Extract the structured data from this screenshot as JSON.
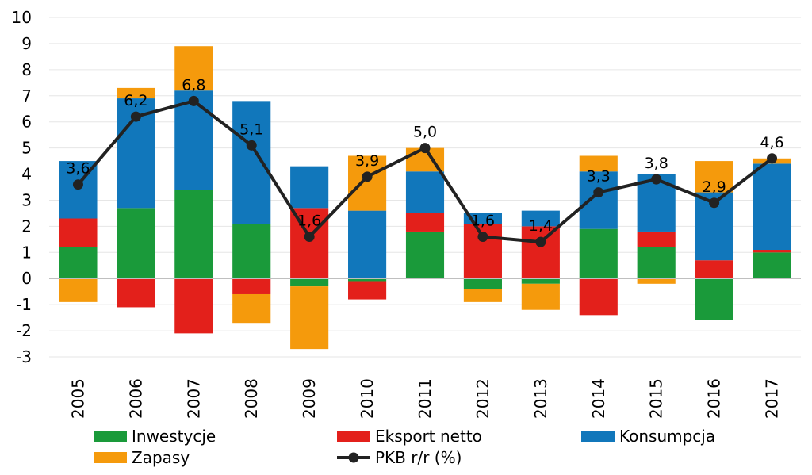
{
  "chart_data": {
    "type": "bar",
    "stacked": true,
    "categories": [
      "2005",
      "2006",
      "2007",
      "2008",
      "2009",
      "2010",
      "2011",
      "2012",
      "2013",
      "2014",
      "2015",
      "2016",
      "2017"
    ],
    "series": [
      {
        "name": "Inwestycje",
        "color": "#1a9a3a",
        "values": [
          1.2,
          2.7,
          3.4,
          2.1,
          -0.3,
          -0.1,
          1.8,
          -0.4,
          -0.2,
          1.9,
          1.2,
          -1.6,
          1.0
        ]
      },
      {
        "name": "Eksport netto",
        "color": "#e3201b",
        "values": [
          1.1,
          -1.1,
          -2.1,
          -0.6,
          2.7,
          -0.7,
          0.7,
          2.1,
          2.0,
          -1.4,
          0.6,
          0.7,
          0.1
        ]
      },
      {
        "name": "Konsumpcja",
        "color": "#1177bb",
        "values": [
          2.2,
          4.2,
          3.8,
          4.7,
          1.6,
          2.6,
          1.6,
          0.4,
          0.6,
          2.2,
          2.2,
          2.6,
          3.3
        ]
      },
      {
        "name": "Zapasy",
        "color": "#f59a0c",
        "values": [
          -0.9,
          0.4,
          1.7,
          -1.1,
          -2.4,
          2.1,
          0.9,
          -0.5,
          -1.0,
          0.6,
          -0.2,
          1.2,
          0.2
        ]
      }
    ],
    "line": {
      "name": "PKB r/r (%)",
      "color": "#222222",
      "values": [
        3.6,
        6.2,
        6.8,
        5.1,
        1.6,
        3.9,
        5.0,
        1.6,
        1.4,
        3.3,
        3.8,
        2.9,
        4.6
      ],
      "labels": [
        "3,6",
        "6,2",
        "6,8",
        "5,1",
        "1,6",
        "3,9",
        "5,0",
        "1,6",
        "1,4",
        "3,3",
        "3,8",
        "2,9",
        "4,6"
      ]
    },
    "ylim": [
      -3,
      10
    ],
    "yticks": [
      -3,
      -2,
      -1,
      0,
      1,
      2,
      3,
      4,
      5,
      6,
      7,
      8,
      9,
      10
    ],
    "grid": true,
    "legend": "bottom"
  }
}
